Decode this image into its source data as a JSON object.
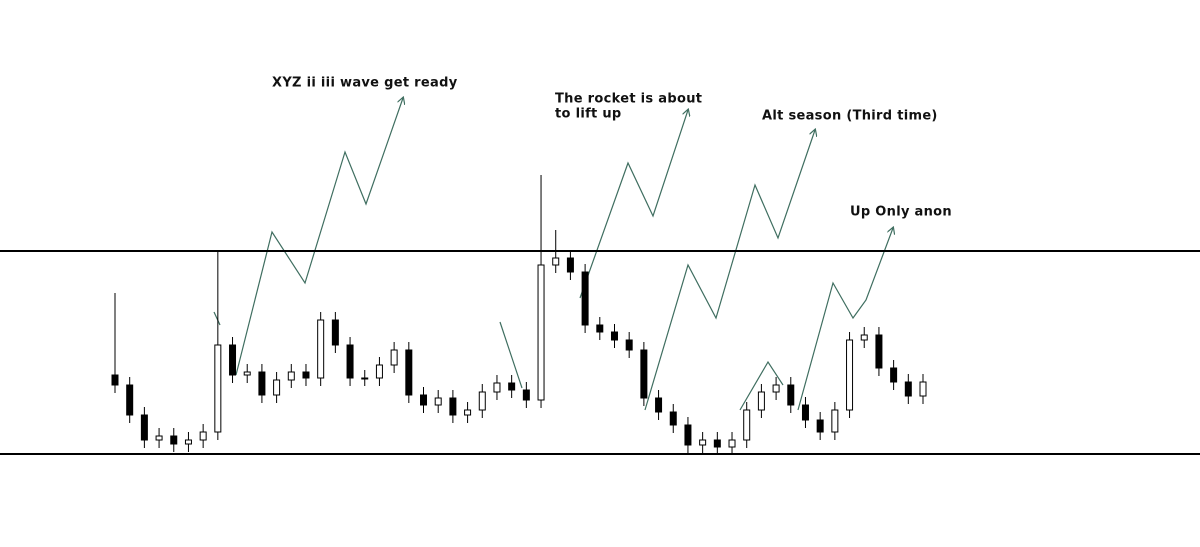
{
  "chart_data": {
    "type": "candlestick",
    "annotations": [
      "XYZ ii iii wave get ready",
      [
        "The rocket is about",
        "to lift up"
      ],
      "Alt season (Third time)",
      "Up Only anon"
    ],
    "ylim": [
      0,
      320
    ],
    "levels": [
      219,
      16
    ],
    "up_color": "#ffffff",
    "down_color": "#000000",
    "open": [
      95,
      85,
      55,
      30,
      34,
      26,
      30,
      38,
      125,
      95,
      98,
      75,
      90,
      98,
      92,
      150,
      125,
      92,
      92,
      105,
      120,
      75,
      65,
      72,
      55,
      60,
      78,
      87,
      80,
      70,
      205,
      212,
      198,
      145,
      138,
      130,
      120,
      72,
      58,
      45,
      25,
      30,
      23,
      30,
      60,
      78,
      85,
      65,
      50,
      38,
      60,
      130,
      135,
      102,
      88,
      74
    ],
    "high": [
      177,
      93,
      63,
      42,
      42,
      38,
      46,
      219,
      133,
      106,
      106,
      98,
      106,
      106,
      158,
      158,
      133,
      100,
      113,
      128,
      128,
      83,
      80,
      80,
      68,
      86,
      95,
      95,
      88,
      295,
      240,
      220,
      206,
      153,
      146,
      138,
      128,
      80,
      66,
      53,
      38,
      38,
      38,
      68,
      86,
      93,
      93,
      73,
      58,
      68,
      138,
      143,
      143,
      110,
      96,
      96
    ],
    "low": [
      77,
      47,
      22,
      22,
      18,
      18,
      22,
      30,
      87,
      87,
      67,
      67,
      82,
      84,
      84,
      117,
      84,
      84,
      84,
      97,
      67,
      57,
      57,
      47,
      47,
      52,
      70,
      72,
      62,
      62,
      197,
      190,
      137,
      130,
      122,
      112,
      64,
      50,
      37,
      17,
      17,
      15,
      15,
      22,
      52,
      70,
      57,
      42,
      30,
      30,
      52,
      122,
      94,
      80,
      66,
      66
    ],
    "close": [
      85,
      55,
      30,
      34,
      26,
      30,
      38,
      125,
      95,
      98,
      75,
      90,
      98,
      92,
      150,
      125,
      92,
      92,
      105,
      120,
      75,
      65,
      72,
      55,
      60,
      78,
      87,
      80,
      70,
      205,
      212,
      198,
      145,
      138,
      130,
      120,
      72,
      58,
      45,
      25,
      30,
      23,
      30,
      60,
      78,
      85,
      65,
      50,
      38,
      60,
      130,
      135,
      102,
      88,
      74,
      88
    ]
  }
}
